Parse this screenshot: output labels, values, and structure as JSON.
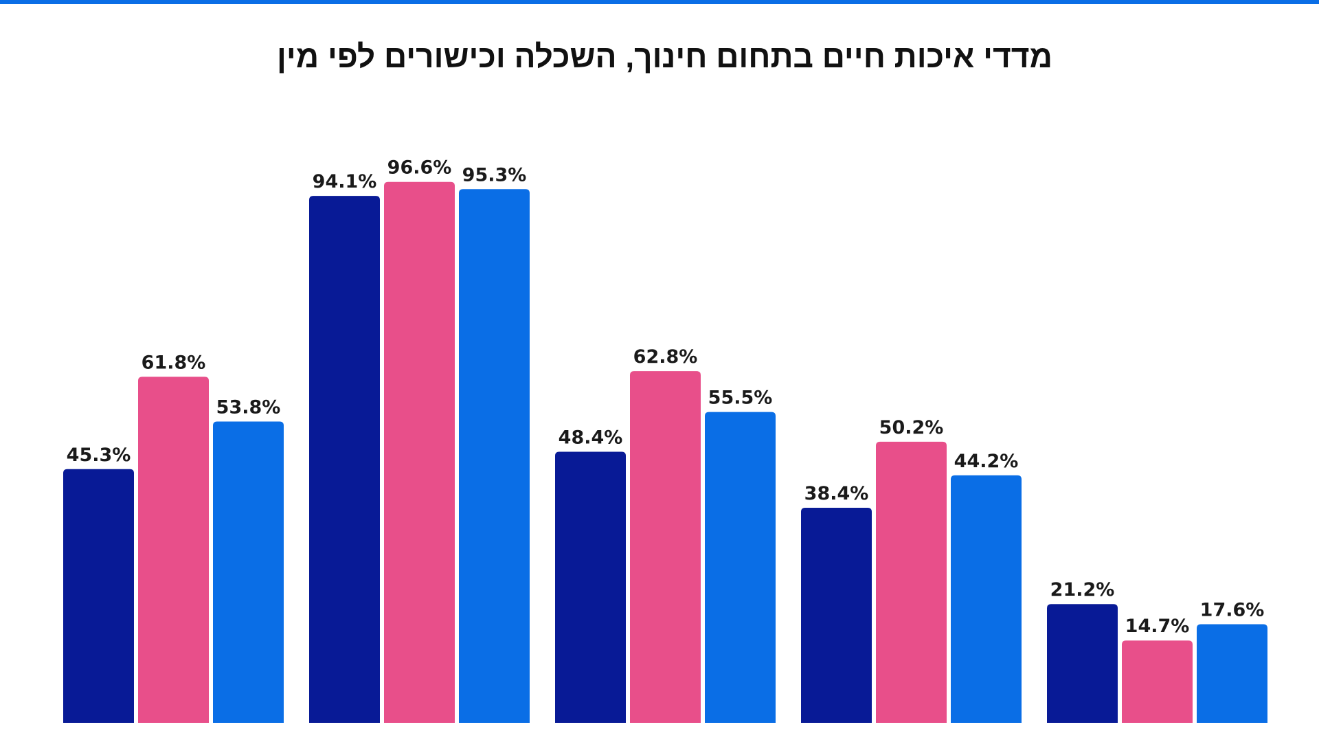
{
  "title": "מדדי איכות חיים בתחום חינוך, השכלה וכישורים לפי מין",
  "colors": {
    "accent_bar": "#0a6ee6",
    "series": [
      "#081a96",
      "#e84f8a",
      "#0a6ee6"
    ],
    "label": "#1a1a1a"
  },
  "chart_data": {
    "type": "bar",
    "categories": [
      "",
      "",
      "",
      "",
      ""
    ],
    "series": [
      {
        "values": [
          45.3,
          94.1,
          48.4,
          38.4,
          21.2
        ]
      },
      {
        "values": [
          61.8,
          96.6,
          62.8,
          50.2,
          14.7
        ]
      },
      {
        "values": [
          53.8,
          95.3,
          55.5,
          44.2,
          17.6
        ]
      }
    ],
    "value_suffix": "%",
    "ylim": [
      0,
      100
    ],
    "grid": false,
    "legend": "none"
  }
}
